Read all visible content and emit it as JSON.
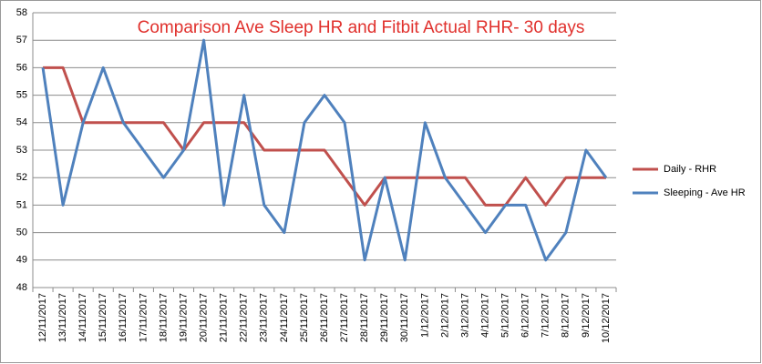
{
  "chart_data": {
    "type": "line",
    "title": "Comparison Ave Sleep HR and Fitbit Actual RHR- 30 days",
    "categories": [
      "12/11/2017",
      "13/11/2017",
      "14/11/2017",
      "15/11/2017",
      "16/11/2017",
      "17/11/2017",
      "18/11/2017",
      "19/11/2017",
      "20/11/2017",
      "21/11/2017",
      "22/11/2017",
      "23/11/2017",
      "24/11/2017",
      "25/11/2017",
      "26/11/2017",
      "27/11/2017",
      "28/11/2017",
      "29/11/2017",
      "30/11/2017",
      "1/12/2017",
      "2/12/2017",
      "3/12/2017",
      "4/12/2017",
      "5/12/2017",
      "6/12/2017",
      "7/12/2017",
      "8/12/2017",
      "9/12/2017",
      "10/12/2017"
    ],
    "series": [
      {
        "name": "Daily - RHR",
        "color": "#c0504d",
        "values": [
          56,
          56,
          54,
          54,
          54,
          54,
          54,
          53,
          54,
          54,
          54,
          53,
          53,
          53,
          53,
          52,
          51,
          52,
          52,
          52,
          52,
          52,
          51,
          51,
          52,
          51,
          52,
          52,
          52
        ]
      },
      {
        "name": "Sleeping - Ave HR",
        "color": "#4f81bd",
        "values": [
          56,
          51,
          54,
          56,
          54,
          53,
          52,
          53,
          57,
          51,
          55,
          51,
          50,
          54,
          55,
          54,
          49,
          52,
          49,
          54,
          52,
          51,
          50,
          51,
          51,
          49,
          50,
          53,
          52
        ]
      }
    ],
    "ylim": [
      48,
      58
    ],
    "yticks": [
      48,
      49,
      50,
      51,
      52,
      53,
      54,
      55,
      56,
      57,
      58
    ],
    "grid": true,
    "legend": "right"
  }
}
